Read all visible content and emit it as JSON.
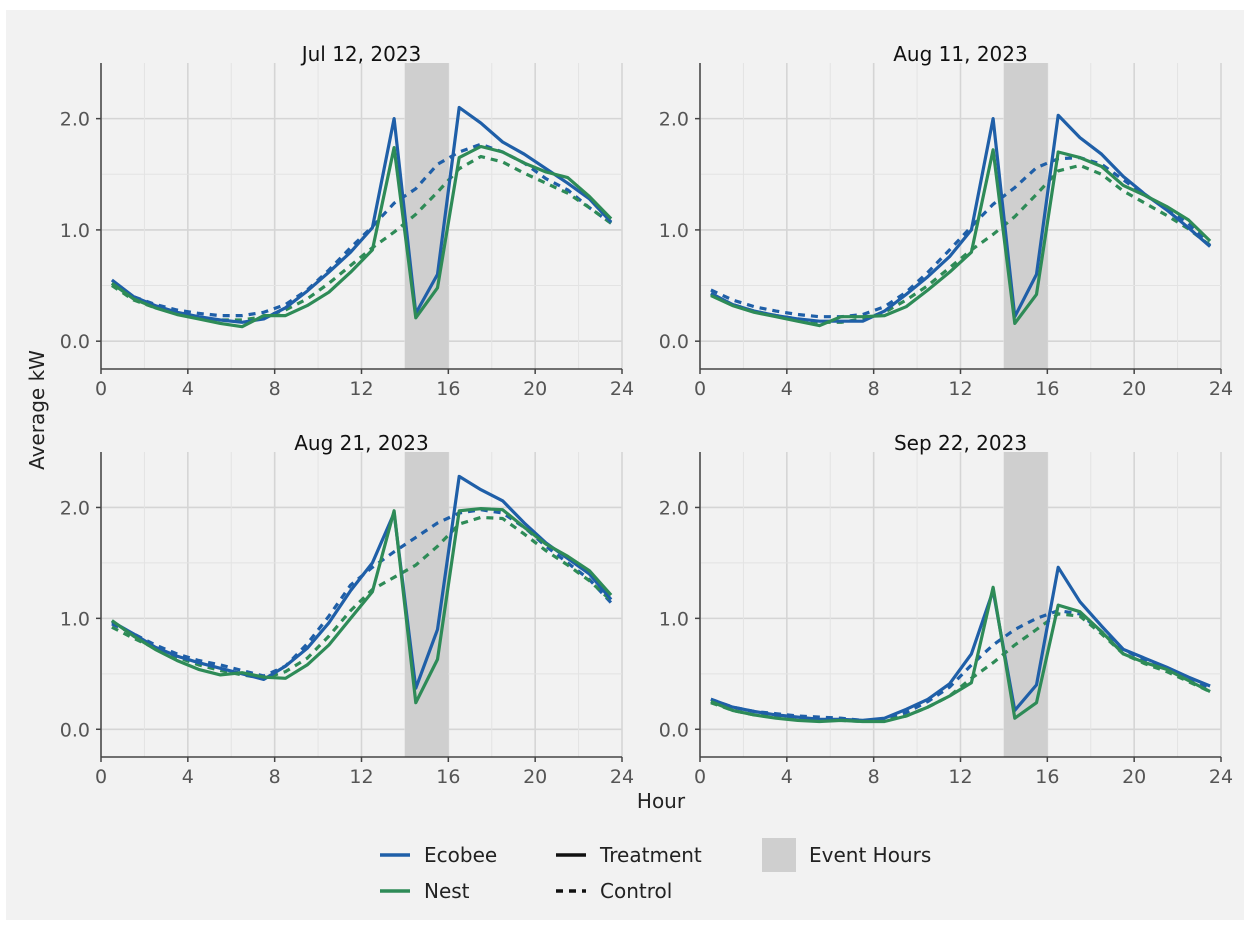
{
  "colors": {
    "background": "#f2f2f2",
    "grid": "#d5d5d5",
    "axis": "#444444",
    "tick_label": "#555555",
    "event_band": "#cfcfcf",
    "ecobee": "#1f5fa8",
    "nest": "#2e8b57"
  },
  "figure": {
    "ylabel": "Average kW",
    "xlabel": "Hour"
  },
  "legend": {
    "series": [
      {
        "label": "Ecobee",
        "color": "#1f5fa8"
      },
      {
        "label": "Nest",
        "color": "#2e8b57"
      }
    ],
    "linetypes": [
      {
        "label": "Treatment",
        "style": "solid"
      },
      {
        "label": "Control",
        "style": "dashed"
      }
    ],
    "band": {
      "label": "Event Hours"
    }
  },
  "chart_data": [
    {
      "type": "line",
      "title": "Jul 12, 2023",
      "xlim": [
        0,
        24
      ],
      "ylim": [
        -0.25,
        2.5
      ],
      "xticks": [
        0,
        4,
        8,
        12,
        16,
        20,
        24
      ],
      "yticks": [
        0.0,
        1.0,
        2.0
      ],
      "ytick_labels": [
        "0.0",
        "1.0",
        "2.0"
      ],
      "event_hours": [
        14,
        16
      ],
      "x": [
        0.5,
        1.5,
        2.5,
        3.5,
        4.5,
        5.5,
        6.5,
        7.5,
        8.5,
        9.5,
        10.5,
        11.5,
        12.5,
        13.5,
        14.5,
        15.5,
        16.5,
        17.5,
        18.5,
        19.5,
        20.5,
        21.5,
        22.5,
        23.5
      ],
      "series": [
        {
          "name": "Ecobee",
          "type": "Treatment",
          "values": [
            0.55,
            0.4,
            0.32,
            0.26,
            0.22,
            0.19,
            0.17,
            0.2,
            0.3,
            0.45,
            0.62,
            0.8,
            1.02,
            2.0,
            0.25,
            0.6,
            2.1,
            1.96,
            1.79,
            1.68,
            1.55,
            1.42,
            1.28,
            1.07
          ]
        },
        {
          "name": "Nest",
          "type": "Treatment",
          "values": [
            0.52,
            0.38,
            0.3,
            0.24,
            0.2,
            0.16,
            0.13,
            0.23,
            0.23,
            0.32,
            0.44,
            0.62,
            0.82,
            1.74,
            0.21,
            0.48,
            1.65,
            1.75,
            1.7,
            1.6,
            1.52,
            1.47,
            1.3,
            1.1
          ]
        },
        {
          "name": "Ecobee",
          "type": "Control",
          "values": [
            0.52,
            0.4,
            0.33,
            0.28,
            0.25,
            0.23,
            0.23,
            0.26,
            0.33,
            0.46,
            0.64,
            0.84,
            1.03,
            1.24,
            1.37,
            1.59,
            1.7,
            1.77,
            1.7,
            1.6,
            1.46,
            1.36,
            1.2,
            1.06
          ]
        },
        {
          "name": "Nest",
          "type": "Control",
          "values": [
            0.5,
            0.37,
            0.3,
            0.25,
            0.21,
            0.19,
            0.19,
            0.22,
            0.28,
            0.38,
            0.52,
            0.68,
            0.84,
            0.98,
            1.14,
            1.34,
            1.55,
            1.66,
            1.61,
            1.51,
            1.42,
            1.33,
            1.2,
            1.06
          ]
        }
      ]
    },
    {
      "type": "line",
      "title": "Aug 11, 2023",
      "xlim": [
        0,
        24
      ],
      "ylim": [
        -0.25,
        2.5
      ],
      "xticks": [
        0,
        4,
        8,
        12,
        16,
        20,
        24
      ],
      "yticks": [
        0.0,
        1.0,
        2.0
      ],
      "ytick_labels": [
        "0.0",
        "1.0",
        "2.0"
      ],
      "event_hours": [
        14,
        16
      ],
      "x": [
        0.5,
        1.5,
        2.5,
        3.5,
        4.5,
        5.5,
        6.5,
        7.5,
        8.5,
        9.5,
        10.5,
        11.5,
        12.5,
        13.5,
        14.5,
        15.5,
        16.5,
        17.5,
        18.5,
        19.5,
        20.5,
        21.5,
        22.5,
        23.5
      ],
      "series": [
        {
          "name": "Ecobee",
          "type": "Treatment",
          "values": [
            0.43,
            0.33,
            0.27,
            0.23,
            0.2,
            0.18,
            0.18,
            0.18,
            0.27,
            0.42,
            0.58,
            0.76,
            1.0,
            2.0,
            0.22,
            0.6,
            2.03,
            1.83,
            1.68,
            1.48,
            1.32,
            1.18,
            1.02,
            0.85
          ]
        },
        {
          "name": "Nest",
          "type": "Treatment",
          "values": [
            0.41,
            0.32,
            0.26,
            0.22,
            0.18,
            0.14,
            0.22,
            0.22,
            0.23,
            0.31,
            0.46,
            0.62,
            0.8,
            1.72,
            0.16,
            0.42,
            1.7,
            1.65,
            1.57,
            1.4,
            1.31,
            1.21,
            1.09,
            0.9
          ]
        },
        {
          "name": "Ecobee",
          "type": "Control",
          "values": [
            0.46,
            0.37,
            0.31,
            0.27,
            0.24,
            0.22,
            0.22,
            0.24,
            0.31,
            0.44,
            0.62,
            0.82,
            1.03,
            1.23,
            1.38,
            1.56,
            1.64,
            1.65,
            1.59,
            1.45,
            1.31,
            1.2,
            1.06,
            0.86
          ]
        },
        {
          "name": "Nest",
          "type": "Control",
          "values": [
            0.42,
            0.33,
            0.27,
            0.23,
            0.2,
            0.17,
            0.17,
            0.2,
            0.26,
            0.37,
            0.5,
            0.66,
            0.82,
            0.96,
            1.12,
            1.32,
            1.53,
            1.58,
            1.5,
            1.35,
            1.24,
            1.13,
            1.01,
            0.86
          ]
        }
      ]
    },
    {
      "type": "line",
      "title": "Aug 21, 2023",
      "xlim": [
        0,
        24
      ],
      "ylim": [
        -0.25,
        2.5
      ],
      "xticks": [
        0,
        4,
        8,
        12,
        16,
        20,
        24
      ],
      "yticks": [
        0.0,
        1.0,
        2.0
      ],
      "ytick_labels": [
        "0.0",
        "1.0",
        "2.0"
      ],
      "event_hours": [
        14,
        16
      ],
      "x": [
        0.5,
        1.5,
        2.5,
        3.5,
        4.5,
        5.5,
        6.5,
        7.5,
        8.5,
        9.5,
        10.5,
        11.5,
        12.5,
        13.5,
        14.5,
        15.5,
        16.5,
        17.5,
        18.5,
        19.5,
        20.5,
        21.5,
        22.5,
        23.5
      ],
      "series": [
        {
          "name": "Ecobee",
          "type": "Treatment",
          "values": [
            0.97,
            0.86,
            0.74,
            0.66,
            0.6,
            0.55,
            0.5,
            0.45,
            0.57,
            0.73,
            0.96,
            1.25,
            1.5,
            1.95,
            0.37,
            0.9,
            2.28,
            2.16,
            2.06,
            1.86,
            1.68,
            1.54,
            1.4,
            1.17
          ]
        },
        {
          "name": "Nest",
          "type": "Treatment",
          "values": [
            0.98,
            0.84,
            0.72,
            0.62,
            0.54,
            0.49,
            0.51,
            0.47,
            0.46,
            0.58,
            0.76,
            1.0,
            1.24,
            1.97,
            0.24,
            0.63,
            1.97,
            1.99,
            1.98,
            1.82,
            1.67,
            1.56,
            1.43,
            1.21
          ]
        },
        {
          "name": "Ecobee",
          "type": "Control",
          "values": [
            0.95,
            0.86,
            0.76,
            0.68,
            0.62,
            0.58,
            0.53,
            0.48,
            0.57,
            0.77,
            1.02,
            1.3,
            1.46,
            1.6,
            1.73,
            1.86,
            1.95,
            1.98,
            1.95,
            1.82,
            1.65,
            1.5,
            1.35,
            1.14
          ]
        },
        {
          "name": "Nest",
          "type": "Control",
          "values": [
            0.92,
            0.82,
            0.73,
            0.65,
            0.58,
            0.53,
            0.49,
            0.46,
            0.52,
            0.64,
            0.84,
            1.07,
            1.26,
            1.37,
            1.48,
            1.65,
            1.85,
            1.91,
            1.9,
            1.76,
            1.61,
            1.48,
            1.34,
            1.16
          ]
        }
      ]
    },
    {
      "type": "line",
      "title": "Sep 22, 2023",
      "xlim": [
        0,
        24
      ],
      "ylim": [
        -0.25,
        2.5
      ],
      "xticks": [
        0,
        4,
        8,
        12,
        16,
        20,
        24
      ],
      "yticks": [
        0.0,
        1.0,
        2.0
      ],
      "ytick_labels": [
        "0.0",
        "1.0",
        "2.0"
      ],
      "event_hours": [
        14,
        16
      ],
      "x": [
        0.5,
        1.5,
        2.5,
        3.5,
        4.5,
        5.5,
        6.5,
        7.5,
        8.5,
        9.5,
        10.5,
        11.5,
        12.5,
        13.5,
        14.5,
        15.5,
        16.5,
        17.5,
        18.5,
        19.5,
        20.5,
        21.5,
        22.5,
        23.5
      ],
      "series": [
        {
          "name": "Ecobee",
          "type": "Treatment",
          "values": [
            0.27,
            0.2,
            0.16,
            0.13,
            0.11,
            0.09,
            0.09,
            0.08,
            0.1,
            0.18,
            0.27,
            0.41,
            0.68,
            1.25,
            0.17,
            0.4,
            1.46,
            1.15,
            0.93,
            0.72,
            0.64,
            0.56,
            0.47,
            0.39
          ]
        },
        {
          "name": "Nest",
          "type": "Treatment",
          "values": [
            0.25,
            0.17,
            0.13,
            0.1,
            0.08,
            0.07,
            0.08,
            0.07,
            0.07,
            0.12,
            0.2,
            0.3,
            0.42,
            1.28,
            0.1,
            0.24,
            1.12,
            1.06,
            0.88,
            0.68,
            0.6,
            0.54,
            0.44,
            0.34
          ]
        },
        {
          "name": "Ecobee",
          "type": "Control",
          "values": [
            0.27,
            0.2,
            0.16,
            0.14,
            0.12,
            0.11,
            0.1,
            0.08,
            0.09,
            0.15,
            0.25,
            0.38,
            0.58,
            0.76,
            0.9,
            1.0,
            1.07,
            1.04,
            0.88,
            0.72,
            0.62,
            0.55,
            0.46,
            0.37
          ]
        },
        {
          "name": "Nest",
          "type": "Control",
          "values": [
            0.24,
            0.17,
            0.13,
            0.11,
            0.09,
            0.08,
            0.08,
            0.07,
            0.08,
            0.12,
            0.2,
            0.3,
            0.46,
            0.6,
            0.76,
            0.9,
            1.04,
            1.02,
            0.86,
            0.68,
            0.59,
            0.52,
            0.43,
            0.34
          ]
        }
      ]
    }
  ]
}
